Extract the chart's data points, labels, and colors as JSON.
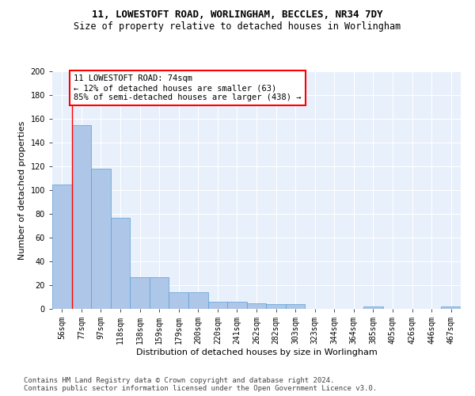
{
  "title1": "11, LOWESTOFT ROAD, WORLINGHAM, BECCLES, NR34 7DY",
  "title2": "Size of property relative to detached houses in Worlingham",
  "xlabel": "Distribution of detached houses by size in Worlingham",
  "ylabel": "Number of detached properties",
  "categories": [
    "56sqm",
    "77sqm",
    "97sqm",
    "118sqm",
    "138sqm",
    "159sqm",
    "179sqm",
    "200sqm",
    "220sqm",
    "241sqm",
    "262sqm",
    "282sqm",
    "303sqm",
    "323sqm",
    "344sqm",
    "364sqm",
    "385sqm",
    "405sqm",
    "426sqm",
    "446sqm",
    "467sqm"
  ],
  "values": [
    105,
    155,
    118,
    77,
    27,
    27,
    14,
    14,
    6,
    6,
    5,
    4,
    4,
    0,
    0,
    0,
    2,
    0,
    0,
    0,
    2
  ],
  "bar_color": "#aec6e8",
  "bar_edge_color": "#5a9fd4",
  "annotation_box_text": "11 LOWESTOFT ROAD: 74sqm\n← 12% of detached houses are smaller (63)\n85% of semi-detached houses are larger (438) →",
  "annotation_box_color": "white",
  "annotation_box_edge_color": "red",
  "annotation_line_color": "red",
  "ylim": [
    0,
    200
  ],
  "yticks": [
    0,
    20,
    40,
    60,
    80,
    100,
    120,
    140,
    160,
    180,
    200
  ],
  "background_color": "#e8f0fb",
  "footnote": "Contains HM Land Registry data © Crown copyright and database right 2024.\nContains public sector information licensed under the Open Government Licence v3.0.",
  "title1_fontsize": 9,
  "title2_fontsize": 8.5,
  "xlabel_fontsize": 8,
  "ylabel_fontsize": 8,
  "tick_fontsize": 7,
  "annotation_fontsize": 7.5,
  "footnote_fontsize": 6.5
}
